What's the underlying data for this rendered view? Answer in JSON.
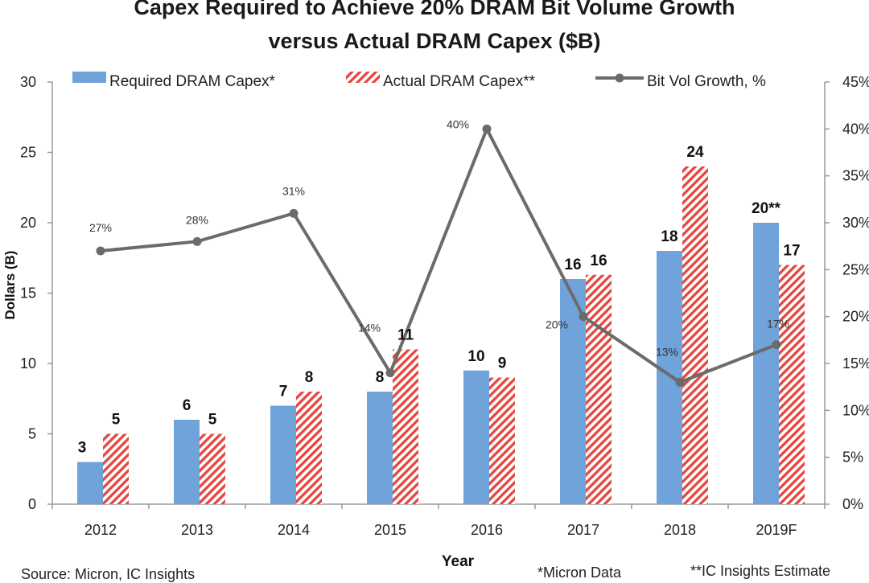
{
  "chart_data": {
    "type": "bar",
    "title_line1": "Capex Required to Achieve 20% DRAM Bit Volume Growth",
    "title_line2": "versus Actual DRAM Capex ($B)",
    "xlabel": "Year",
    "ylabel": "Dollars (B)",
    "categories": [
      "2012",
      "2013",
      "2014",
      "2015",
      "2016",
      "2017",
      "2018",
      "2019F"
    ],
    "y_left": {
      "min": 0,
      "max": 30,
      "step": 5,
      "ticks": [
        "0",
        "5",
        "10",
        "15",
        "20",
        "25",
        "30"
      ]
    },
    "y_right": {
      "min": 0,
      "max": 45,
      "step": 5,
      "ticks": [
        "0%",
        "5%",
        "10%",
        "15%",
        "20%",
        "25%",
        "30%",
        "35%",
        "40%",
        "45%"
      ]
    },
    "series": [
      {
        "name": "Required DRAM Capex*",
        "kind": "bar",
        "color": "#6fa3d9",
        "values": [
          3,
          6,
          7,
          8,
          9.5,
          16,
          18,
          20
        ],
        "labels": [
          "3",
          "6",
          "7",
          "8",
          "10",
          "16",
          "18",
          "20**"
        ]
      },
      {
        "name": "Actual DRAM Capex**",
        "kind": "bar-hatched",
        "color": "#e8403a",
        "values": [
          5,
          5,
          8,
          11,
          9,
          16.3,
          24,
          17
        ],
        "labels": [
          "5",
          "5",
          "8",
          "11",
          "9",
          "16",
          "24",
          "17"
        ]
      },
      {
        "name": "Bit Vol Growth, %",
        "kind": "line",
        "axis": "right",
        "color": "#6b6b6b",
        "values": [
          27,
          28,
          31,
          14,
          40,
          20,
          13,
          17
        ],
        "labels": [
          "27%",
          "28%",
          "31%",
          "14%",
          "40%",
          "20%",
          "13%",
          "17%"
        ]
      }
    ],
    "legend_position": "top",
    "grid": false
  },
  "footer": {
    "source": "Source: Micron, IC Insights",
    "note1": "*Micron Data",
    "note2": "**IC Insights Estimate"
  }
}
